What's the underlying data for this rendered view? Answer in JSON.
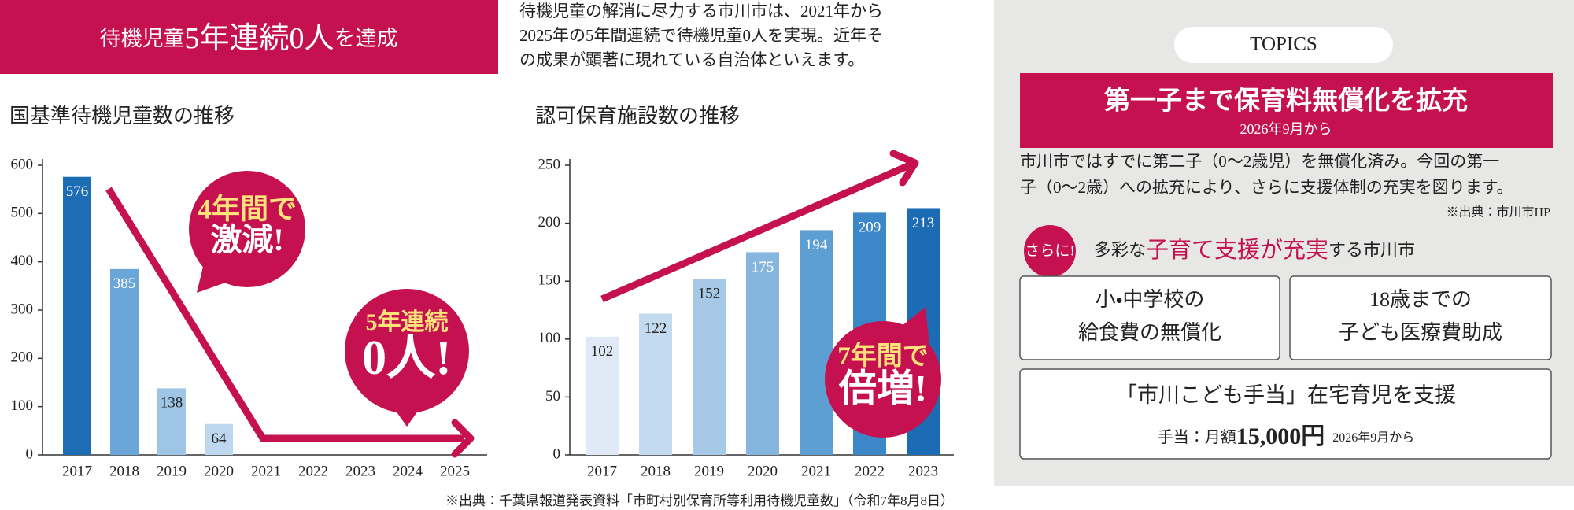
{
  "banner": {
    "lead": "待機児童",
    "emph": "5年連続0人",
    "tail": "を達成"
  },
  "intro": [
    "待機児童の解消に尽力する市川市は、2021年から",
    "2025年の5年間連続で待機児童0人を実現。近年そ",
    "の成果が顕著に現れている自治体といえます。"
  ],
  "chart_data": [
    {
      "type": "bar",
      "title": "国基準待機児童数の推移",
      "categories": [
        "2017",
        "2018",
        "2019",
        "2020",
        "2021",
        "2022",
        "2023",
        "2024",
        "2025"
      ],
      "values": [
        576,
        385,
        138,
        64,
        0,
        0,
        0,
        0,
        0
      ],
      "value_labels": [
        "576",
        "385",
        "138",
        "64",
        null,
        null,
        null,
        null,
        null
      ],
      "colors": [
        "#1d6db4",
        "#6aa6d8",
        "#9ec5e6",
        "#bdd8ee",
        "#bdd8ee",
        "#bdd8ee",
        "#bdd8ee",
        "#bdd8ee",
        "#bdd8ee"
      ],
      "ylim": [
        0,
        600
      ],
      "yticks": [
        0,
        100,
        200,
        300,
        400,
        500,
        600
      ],
      "grid": false,
      "annotations": [
        {
          "lines": [
            "4年間で",
            "激減!"
          ]
        },
        {
          "lines": [
            "5年連続",
            "0人!"
          ]
        }
      ]
    },
    {
      "type": "bar",
      "title": "認可保育施設数の推移",
      "categories": [
        "2017",
        "2018",
        "2019",
        "2020",
        "2021",
        "2022",
        "2023"
      ],
      "values": [
        102,
        122,
        152,
        175,
        194,
        209,
        213
      ],
      "colors": [
        "#dfeaf6",
        "#c3daef",
        "#a6c9e7",
        "#86b5dd",
        "#5d9ed3",
        "#3c87c7",
        "#1b6cb5"
      ],
      "ylim": [
        0,
        250
      ],
      "yticks": [
        0,
        50,
        100,
        150,
        200,
        250
      ],
      "grid": false,
      "annotations": [
        {
          "lines": [
            "7年間で",
            "倍増!"
          ]
        }
      ]
    }
  ],
  "source": "※出典：千葉県報道発表資料「市町村別保育所等利用待機児童数」（令和7年8月8日）",
  "topics": {
    "label": "TOPICS",
    "headline": "第一子まで保育料無償化を拡充",
    "headline_sub": "2026年9月から",
    "body": [
      "市川市ではすでに第二子（0〜2歳児）を無償化済み。今回の第一",
      "子（0〜2歳）への拡充により、さらに支援体制の充実を図ります。"
    ],
    "body_source": "※出典：市川市HP",
    "badge": "さらに!",
    "support_lead": "多彩な",
    "support_emph": "子育て支援が充実",
    "support_tail": "する市川市",
    "boxes": [
      [
        "小・中学校の",
        "給食費の無償化"
      ],
      [
        "18歳までの",
        "子ども医療費助成"
      ]
    ],
    "allowance": {
      "title": "「市川こども手当」在宅育児を支援",
      "lead": "手当：月額",
      "amount": "15,000円",
      "note": "2026年9月から"
    }
  }
}
